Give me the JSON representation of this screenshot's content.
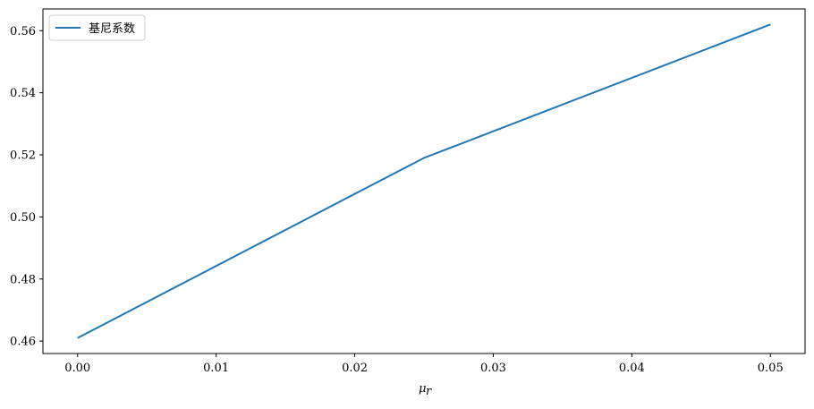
{
  "chart_data": {
    "type": "line",
    "title": "",
    "xlabel": "μ",
    "xlabel_sub": "r",
    "ylabel": "",
    "xlim": [
      -0.0025,
      0.0525
    ],
    "ylim": [
      0.456,
      0.567
    ],
    "xticks": [
      "0.00",
      "0.01",
      "0.02",
      "0.03",
      "0.04",
      "0.05"
    ],
    "yticks": [
      "0.46",
      "0.48",
      "0.50",
      "0.52",
      "0.54",
      "0.56"
    ],
    "grid": false,
    "legend_position": "top-left",
    "series": [
      {
        "name": "基尼系数",
        "color": "#1f77b4",
        "x": [
          0,
          0.025,
          0.05
        ],
        "y": [
          0.461,
          0.519,
          0.562
        ]
      }
    ]
  }
}
